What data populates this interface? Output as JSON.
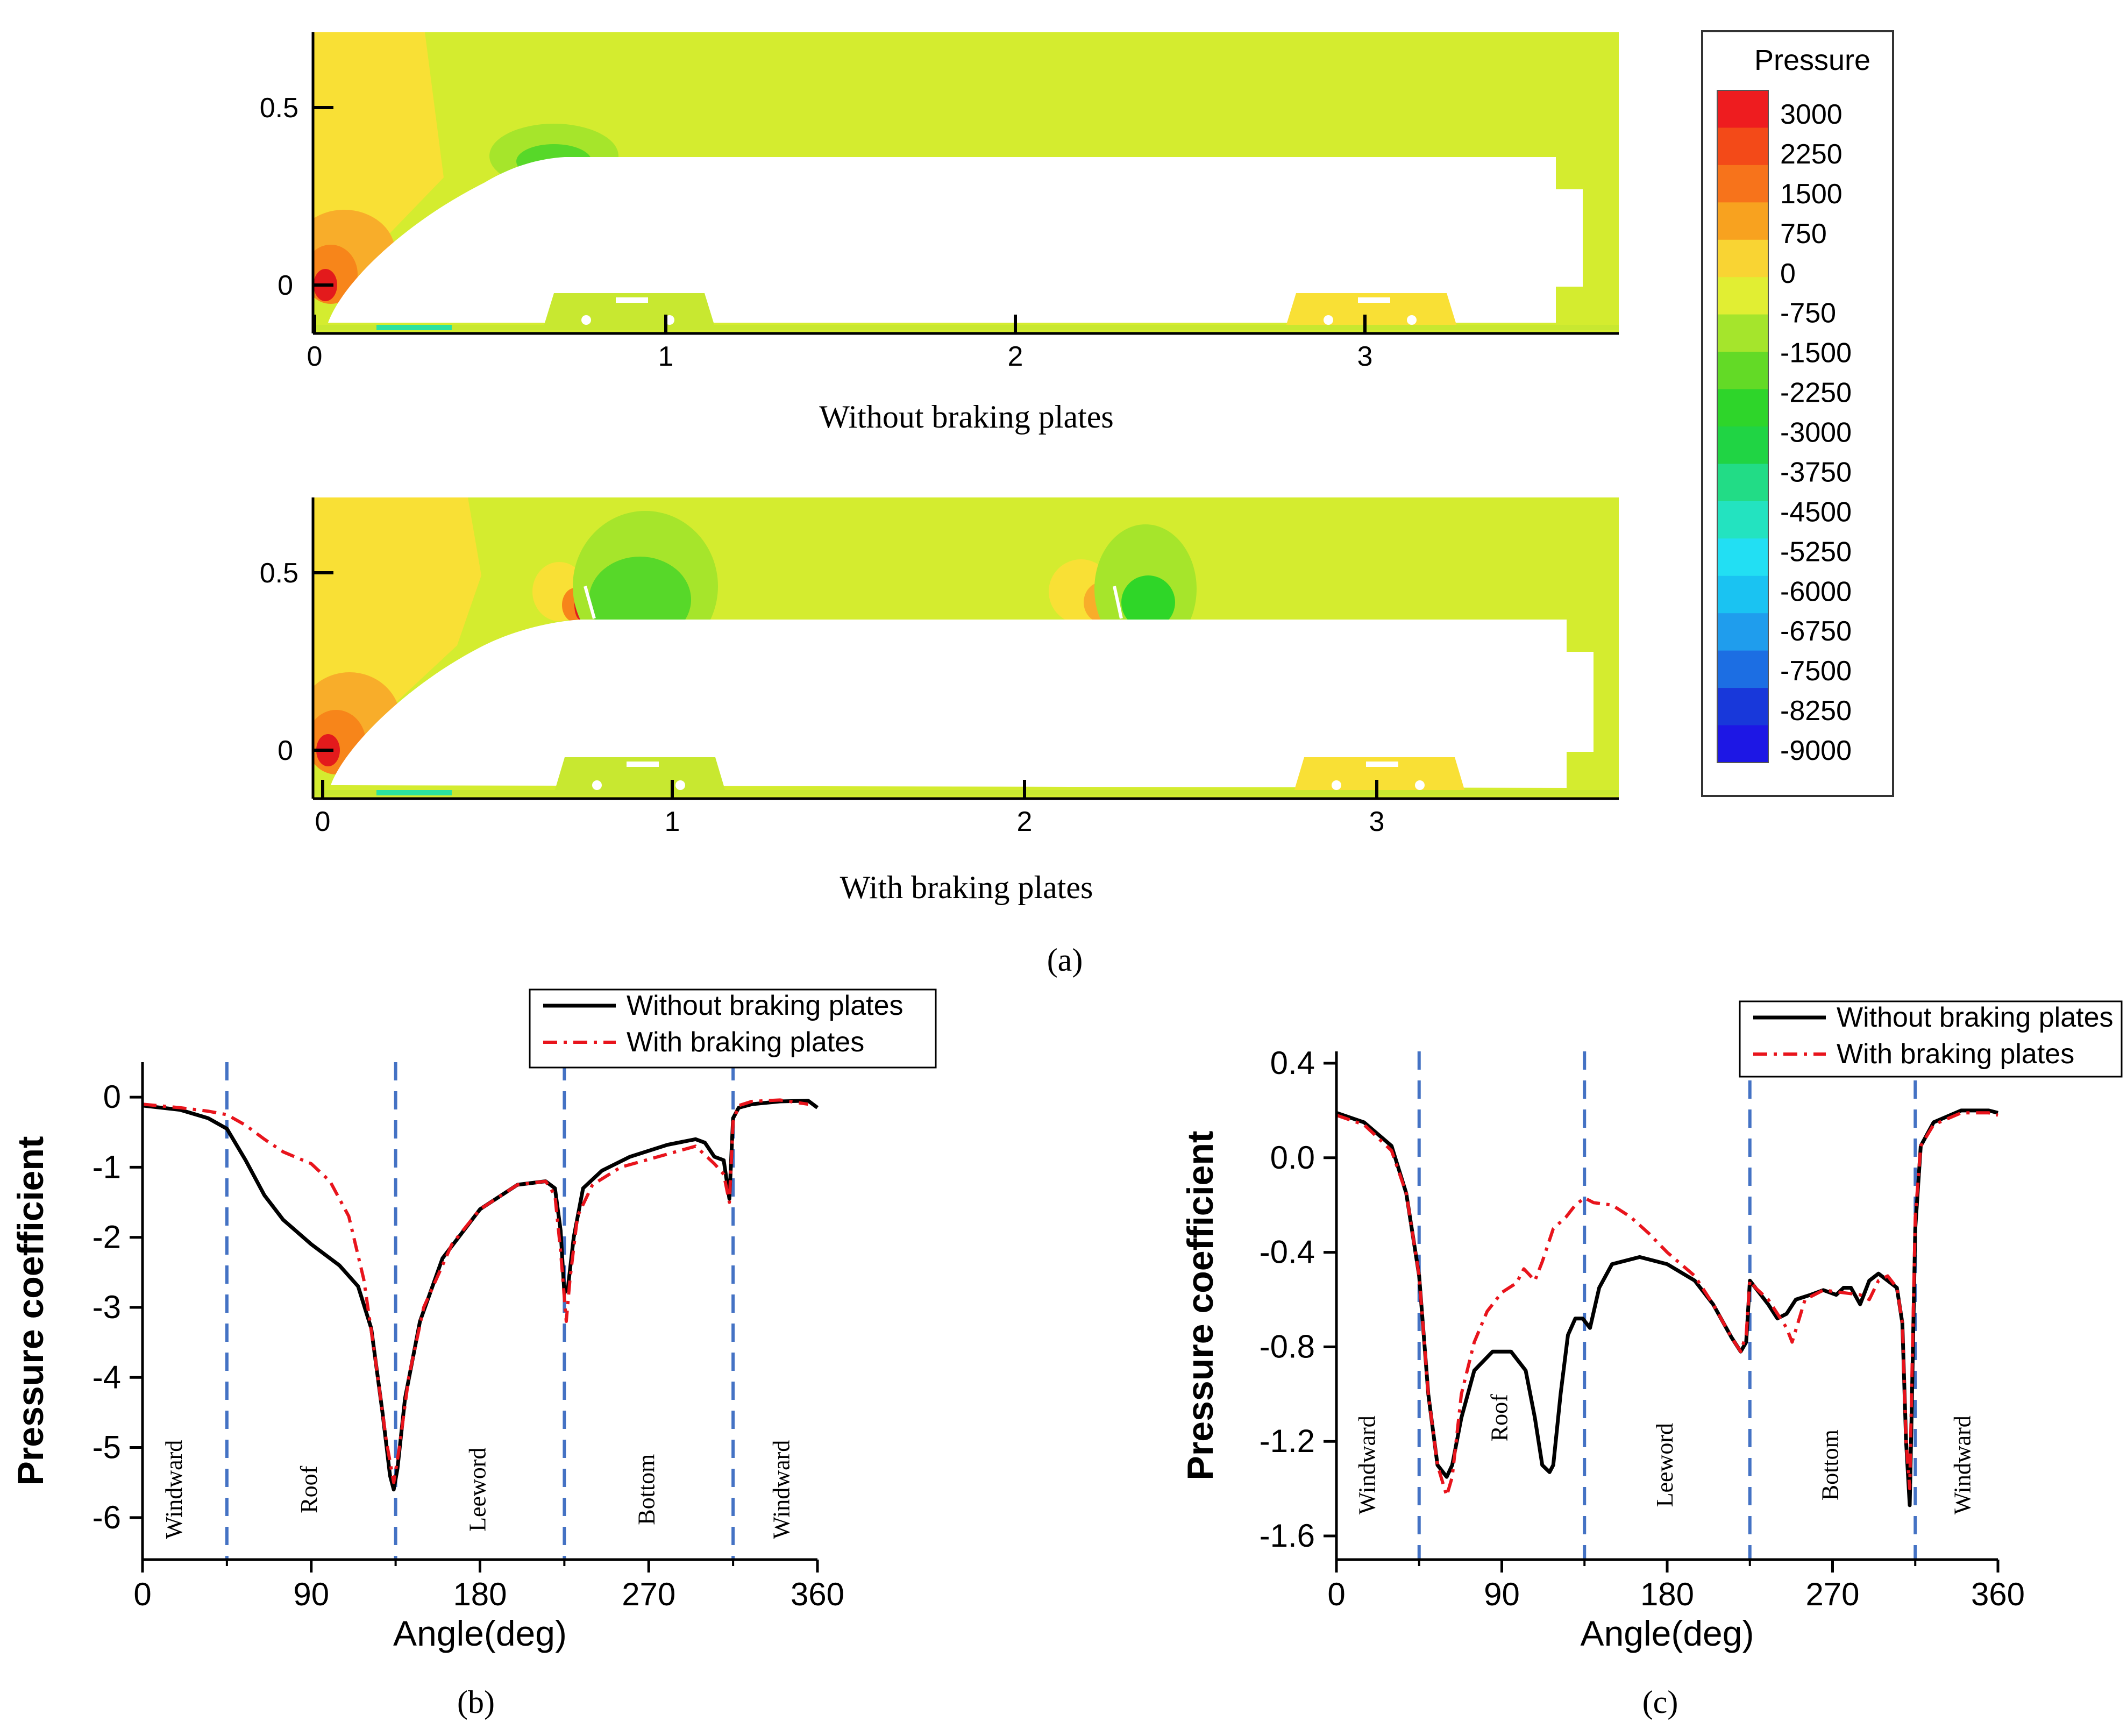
{
  "colors": {
    "red": "#e31a1c",
    "red_orange": "#f44b14",
    "orange": "#f7851a",
    "light_orange": "#f8ad2a",
    "yellow": "#f9e035",
    "yellow_green": "#d4ec2f",
    "light_green": "#a6e52b",
    "green": "#57d829",
    "green2": "#2fd628",
    "teal": "#2be3a0",
    "blue_line": "#4472c4",
    "black_line": "#000000",
    "red_line": "#e8141c"
  },
  "legend_pressure": {
    "title": "Pressure",
    "levels": [
      "3000",
      "2250",
      "1500",
      "750",
      "0",
      "-750",
      "-1500",
      "-2250",
      "-3000",
      "-3750",
      "-4500",
      "-5250",
      "-6000",
      "-6750",
      "-7500",
      "-8250",
      "-9000"
    ],
    "swatch_colors": [
      "#ee1c1f",
      "#f34a18",
      "#f7731b",
      "#f8a21f",
      "#f9d433",
      "#e1ee33",
      "#a5e52c",
      "#63da26",
      "#2ed52a",
      "#20d444",
      "#22dc86",
      "#23e3c0",
      "#22dff3",
      "#1ac3f2",
      "#1f9ded",
      "#1c6ee3",
      "#1838da",
      "#1d17e5"
    ]
  },
  "contour_top": {
    "caption": "Without braking plates",
    "y_ticks": [
      "0.5",
      "0"
    ],
    "x_ticks": [
      "0",
      "1",
      "2",
      "3"
    ]
  },
  "contour_bottom": {
    "caption": "With braking plates",
    "y_ticks": [
      "0.5",
      "0"
    ],
    "x_ticks": [
      "0",
      "1",
      "2",
      "3"
    ]
  },
  "panel_labels": {
    "a": "(a)",
    "b": "(b)",
    "c": "(c)"
  },
  "chart_data": [
    {
      "id": "b",
      "type": "line",
      "xlabel": "Angle(deg)",
      "ylabel": "Pressure coefficient",
      "xlim": [
        0,
        360
      ],
      "ylim": [
        -6.6,
        0.5
      ],
      "x_ticks": [
        0,
        90,
        180,
        270,
        360
      ],
      "y_ticks": [
        0,
        -1,
        -2,
        -3,
        -4,
        -5,
        -6
      ],
      "x_tick_labels": [
        "0",
        "90",
        "180",
        "270",
        "360"
      ],
      "y_tick_labels": [
        "0",
        "-1",
        "-2",
        "-3",
        "-4",
        "-5",
        "-6"
      ],
      "dividers": [
        45,
        135,
        225,
        315
      ],
      "regions": [
        {
          "label": "Windward",
          "x": 18,
          "y": -5.6
        },
        {
          "label": "Roof",
          "x": 90,
          "y": -5.6
        },
        {
          "label": "Leeword",
          "x": 180,
          "y": -5.6
        },
        {
          "label": "Bottom",
          "x": 270,
          "y": -5.6
        },
        {
          "label": "Windward",
          "x": 342,
          "y": -5.6
        }
      ],
      "legend": [
        "Without braking plates",
        "With braking plates"
      ],
      "series": [
        {
          "name": "Without braking plates",
          "x": [
            0,
            20,
            35,
            45,
            55,
            65,
            75,
            90,
            105,
            115,
            122,
            128,
            132,
            134,
            136,
            140,
            148,
            160,
            180,
            200,
            215,
            220,
            223,
            225,
            227,
            230,
            235,
            245,
            260,
            280,
            295,
            300,
            305,
            310,
            313,
            315,
            318,
            325,
            340,
            355,
            360
          ],
          "y": [
            -0.12,
            -0.18,
            -0.3,
            -0.45,
            -0.9,
            -1.4,
            -1.75,
            -2.1,
            -2.4,
            -2.7,
            -3.3,
            -4.5,
            -5.4,
            -5.6,
            -5.3,
            -4.3,
            -3.2,
            -2.3,
            -1.6,
            -1.25,
            -1.2,
            -1.3,
            -1.9,
            -2.8,
            -2.7,
            -2.0,
            -1.3,
            -1.05,
            -0.85,
            -0.68,
            -0.6,
            -0.65,
            -0.85,
            -0.9,
            -1.45,
            -0.3,
            -0.15,
            -0.1,
            -0.06,
            -0.05,
            -0.15
          ]
        },
        {
          "name": "With braking plates",
          "x": [
            0,
            20,
            35,
            45,
            55,
            65,
            75,
            90,
            100,
            110,
            118,
            124,
            130,
            134,
            137,
            142,
            150,
            165,
            180,
            200,
            215,
            220,
            223,
            226,
            228,
            232,
            240,
            255,
            275,
            295,
            305,
            310,
            313,
            315,
            318,
            325,
            340,
            355
          ],
          "y": [
            -0.1,
            -0.15,
            -0.2,
            -0.25,
            -0.4,
            -0.6,
            -0.78,
            -0.95,
            -1.2,
            -1.7,
            -2.6,
            -3.7,
            -4.9,
            -5.5,
            -5.0,
            -4.0,
            -3.0,
            -2.1,
            -1.6,
            -1.25,
            -1.2,
            -1.4,
            -2.2,
            -3.2,
            -2.6,
            -1.7,
            -1.25,
            -1.0,
            -0.85,
            -0.7,
            -0.95,
            -1.1,
            -1.5,
            -0.35,
            -0.12,
            -0.06,
            -0.04,
            -0.1
          ]
        }
      ]
    },
    {
      "id": "c",
      "type": "line",
      "xlabel": "Angle(deg)",
      "ylabel": "Pressure coefficient",
      "xlim": [
        0,
        360
      ],
      "ylim": [
        -1.7,
        0.45
      ],
      "x_ticks": [
        0,
        90,
        180,
        270,
        360
      ],
      "y_ticks": [
        0.4,
        0.0,
        -0.4,
        -0.8,
        -1.2,
        -1.6
      ],
      "x_tick_labels": [
        "0",
        "90",
        "180",
        "270",
        "360"
      ],
      "y_tick_labels": [
        "0.4",
        "0.0",
        "-0.4",
        "-0.8",
        "-1.2",
        "-1.6"
      ],
      "dividers": [
        45,
        135,
        225,
        315
      ],
      "regions": [
        {
          "label": "Windward",
          "x": 18,
          "y": -1.3
        },
        {
          "label": "Roof",
          "x": 90,
          "y": -1.1
        },
        {
          "label": "Leeword",
          "x": 180,
          "y": -1.3
        },
        {
          "label": "Bottom",
          "x": 270,
          "y": -1.3
        },
        {
          "label": "Windward",
          "x": 342,
          "y": -1.3
        }
      ],
      "legend": [
        "Without braking plates",
        "With braking plates"
      ],
      "series": [
        {
          "name": "Without braking plates",
          "x": [
            0,
            15,
            30,
            38,
            45,
            50,
            55,
            60,
            63,
            68,
            75,
            85,
            95,
            103,
            108,
            112,
            116,
            118,
            122,
            126,
            130,
            134,
            138,
            143,
            150,
            165,
            180,
            195,
            205,
            215,
            220,
            223,
            225,
            228,
            235,
            240,
            245,
            250,
            258,
            265,
            272,
            276,
            280,
            285,
            290,
            295,
            300,
            305,
            308,
            310,
            312,
            313,
            315,
            318,
            325,
            340,
            355,
            360
          ],
          "y": [
            0.19,
            0.15,
            0.05,
            -0.15,
            -0.5,
            -1.0,
            -1.3,
            -1.35,
            -1.3,
            -1.1,
            -0.9,
            -0.82,
            -0.82,
            -0.9,
            -1.1,
            -1.3,
            -1.33,
            -1.3,
            -1.0,
            -0.75,
            -0.68,
            -0.68,
            -0.72,
            -0.55,
            -0.45,
            -0.42,
            -0.45,
            -0.52,
            -0.62,
            -0.76,
            -0.82,
            -0.78,
            -0.52,
            -0.55,
            -0.62,
            -0.68,
            -0.66,
            -0.6,
            -0.58,
            -0.56,
            -0.58,
            -0.55,
            -0.55,
            -0.62,
            -0.52,
            -0.49,
            -0.52,
            -0.55,
            -0.7,
            -1.2,
            -1.47,
            -1.1,
            -0.3,
            0.05,
            0.15,
            0.2,
            0.2,
            0.19
          ]
        },
        {
          "name": "With braking plates",
          "x": [
            0,
            15,
            30,
            38,
            45,
            50,
            55,
            60,
            63,
            68,
            75,
            82,
            90,
            98,
            102,
            108,
            112,
            118,
            125,
            130,
            135,
            140,
            150,
            160,
            170,
            180,
            195,
            205,
            215,
            220,
            223,
            225,
            228,
            235,
            240,
            245,
            248,
            255,
            265,
            275,
            285,
            290,
            295,
            300,
            305,
            308,
            310,
            312,
            313,
            315,
            318,
            325,
            340,
            355,
            360
          ],
          "y": [
            0.18,
            0.14,
            0.03,
            -0.15,
            -0.5,
            -1.0,
            -1.3,
            -1.43,
            -1.35,
            -1.0,
            -0.78,
            -0.65,
            -0.57,
            -0.53,
            -0.47,
            -0.52,
            -0.44,
            -0.3,
            -0.25,
            -0.2,
            -0.17,
            -0.19,
            -0.2,
            -0.25,
            -0.32,
            -0.4,
            -0.5,
            -0.62,
            -0.76,
            -0.82,
            -0.75,
            -0.52,
            -0.55,
            -0.6,
            -0.66,
            -0.72,
            -0.78,
            -0.6,
            -0.56,
            -0.57,
            -0.58,
            -0.6,
            -0.52,
            -0.5,
            -0.55,
            -0.7,
            -1.2,
            -1.4,
            -1.0,
            -0.25,
            0.05,
            0.14,
            0.19,
            0.19,
            0.18
          ]
        }
      ]
    }
  ]
}
